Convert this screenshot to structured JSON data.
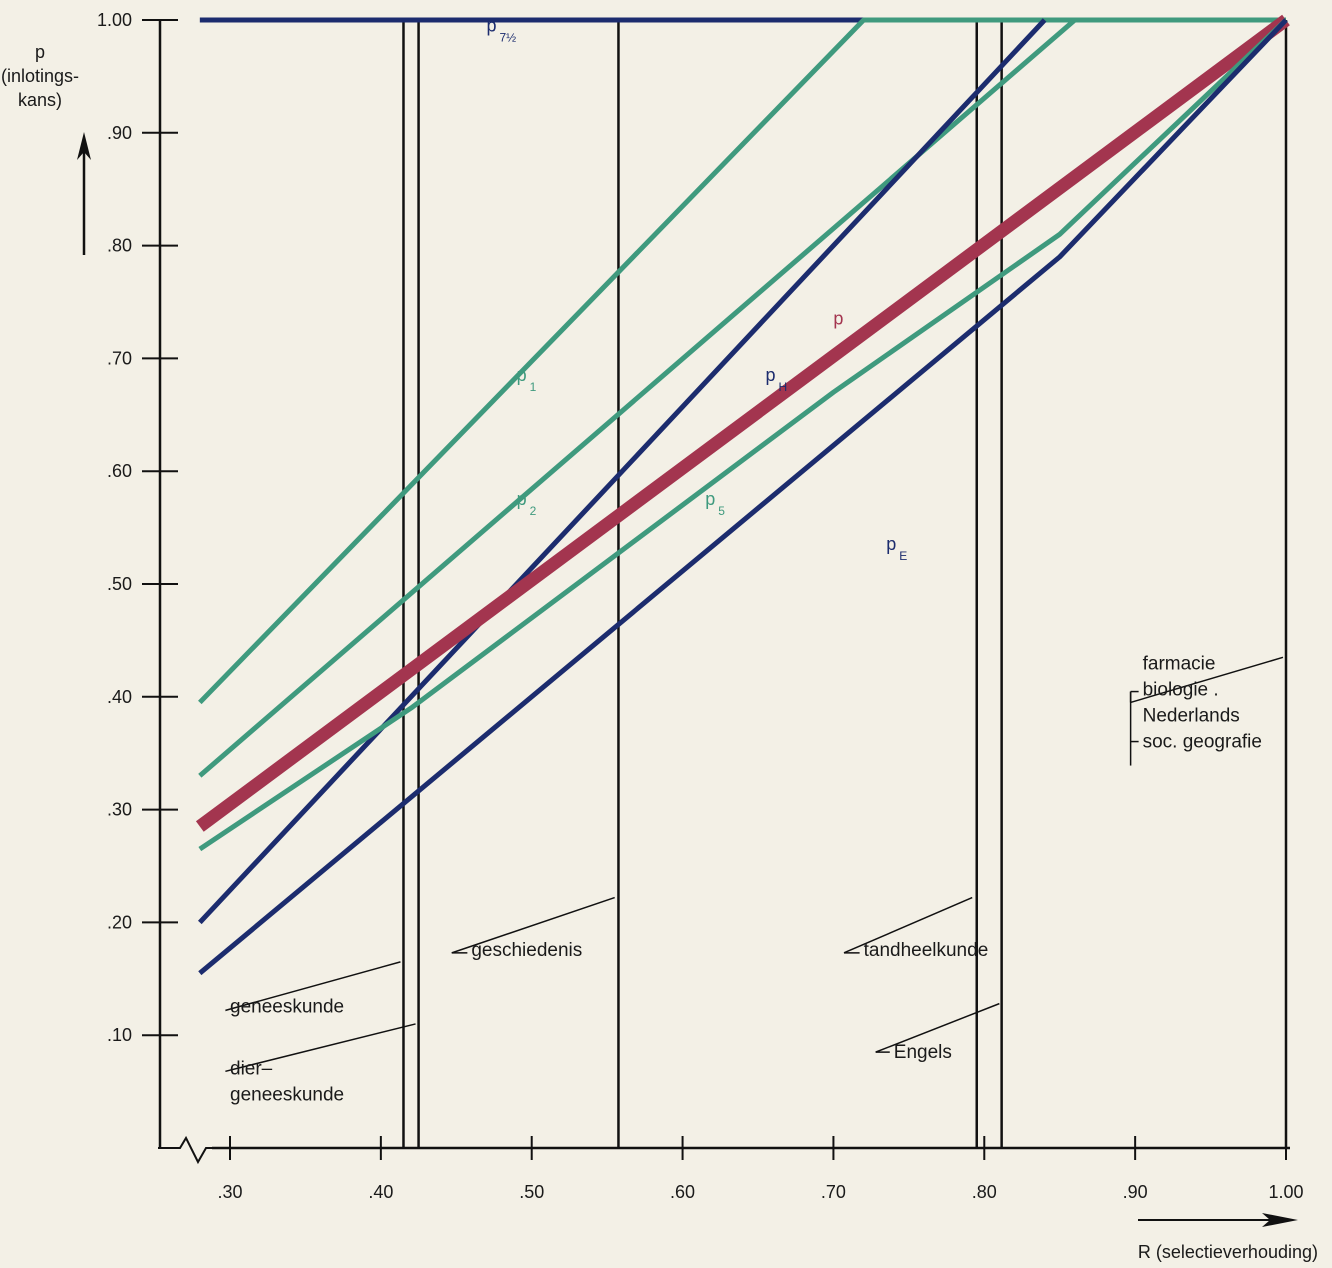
{
  "chart_data": {
    "type": "line",
    "xlabel": "R (selectieverhouding)",
    "ylabel": [
      "p",
      "(inlotings-",
      "kans)"
    ],
    "xlim": [
      0.25,
      1.0
    ],
    "ylim": [
      0.0,
      1.0
    ],
    "x_ticks": [
      ".30",
      ".40",
      ".50",
      ".60",
      ".70",
      ".80",
      ".90",
      "1.00"
    ],
    "y_ticks": [
      "1.00",
      ".90",
      ".80",
      ".70",
      ".60",
      ".50",
      ".40",
      ".30",
      ".20",
      ".10"
    ],
    "grid": false,
    "colors": {
      "green": "#3f9a7e",
      "navy": "#1c2c6e",
      "red": "#a3354f",
      "black": "#111111"
    },
    "series": [
      {
        "name": "p7½",
        "base": "p",
        "sub": "7½",
        "color": "navy",
        "width": 5,
        "x": [
          0.28,
          1.0
        ],
        "y": [
          1.0,
          1.0
        ]
      },
      {
        "name": "p1",
        "base": "p",
        "sub": "1",
        "color": "green",
        "width": 5,
        "x": [
          0.28,
          0.72,
          1.0
        ],
        "y": [
          0.395,
          1.0,
          1.0
        ]
      },
      {
        "name": "p2",
        "base": "p",
        "sub": "2",
        "color": "green",
        "width": 5,
        "x": [
          0.28,
          0.86,
          1.0
        ],
        "y": [
          0.33,
          1.0,
          1.0
        ]
      },
      {
        "name": "pH",
        "base": "p",
        "sub": "H",
        "color": "navy",
        "width": 5,
        "x": [
          0.28,
          0.84
        ],
        "y": [
          0.2,
          1.0
        ]
      },
      {
        "name": "p",
        "base": "p",
        "sub": "",
        "color": "red",
        "width": 13,
        "x": [
          0.28,
          1.0
        ],
        "y": [
          0.285,
          1.0
        ]
      },
      {
        "name": "p5",
        "base": "p",
        "sub": "5",
        "color": "green",
        "width": 5,
        "x": [
          0.28,
          0.42,
          0.7,
          0.85,
          1.0
        ],
        "y": [
          0.265,
          0.39,
          0.67,
          0.81,
          1.0
        ]
      },
      {
        "name": "pE",
        "base": "p",
        "sub": "E",
        "color": "navy",
        "width": 5,
        "x": [
          0.28,
          0.85,
          1.0
        ],
        "y": [
          0.155,
          0.79,
          1.0
        ]
      }
    ],
    "series_labels": [
      {
        "series": "p7½",
        "x": 0.47,
        "y": 0.99
      },
      {
        "series": "p1",
        "x": 0.49,
        "y": 0.68
      },
      {
        "series": "p2",
        "x": 0.49,
        "y": 0.57
      },
      {
        "series": "pH",
        "x": 0.655,
        "y": 0.68
      },
      {
        "series": "p",
        "x": 0.7,
        "y": 0.73
      },
      {
        "series": "p5",
        "x": 0.615,
        "y": 0.57
      },
      {
        "series": "pE",
        "x": 0.735,
        "y": 0.53
      }
    ],
    "vertical_lines": [
      {
        "x": 0.415,
        "y_top": 1.0
      },
      {
        "x": 0.425,
        "y_top": 1.0
      },
      {
        "x": 0.5575,
        "y_top": 1.0
      },
      {
        "x": 0.795,
        "y_top": 1.0
      },
      {
        "x": 0.8115,
        "y_top": 1.0
      },
      {
        "x": 1.0,
        "y_top": 1.0
      }
    ],
    "annotations": [
      {
        "lines": [
          "geneeskunde"
        ],
        "text_x": 0.3,
        "text_y": 0.12,
        "from_x": 0.297,
        "from_y": 0.122,
        "to_x": 0.413,
        "to_y": 0.165
      },
      {
        "lines": [
          "dier–",
          "geneeskunde"
        ],
        "text_x": 0.3,
        "text_y": 0.065,
        "from_x": 0.297,
        "from_y": 0.068,
        "to_x": 0.423,
        "to_y": 0.11
      },
      {
        "lines": [
          "geschiedenis"
        ],
        "text_x": 0.46,
        "text_y": 0.17,
        "from_x": 0.447,
        "from_y": 0.173,
        "to_x": 0.555,
        "to_y": 0.222
      },
      {
        "lines": [
          "tandheelkunde"
        ],
        "text_x": 0.72,
        "text_y": 0.17,
        "from_x": 0.707,
        "from_y": 0.173,
        "to_x": 0.792,
        "to_y": 0.222
      },
      {
        "lines": [
          "Engels"
        ],
        "text_x": 0.74,
        "text_y": 0.08,
        "from_x": 0.728,
        "from_y": 0.085,
        "to_x": 0.81,
        "to_y": 0.128
      },
      {
        "lines": [
          "farmacie",
          "biologie .",
          "Nederlands",
          "soc. geografie"
        ],
        "text_x": 0.9,
        "text_y": 0.355,
        "from_x": 0.897,
        "from_y": 0.395,
        "to_x": 0.998,
        "to_y": 0.435
      }
    ]
  }
}
